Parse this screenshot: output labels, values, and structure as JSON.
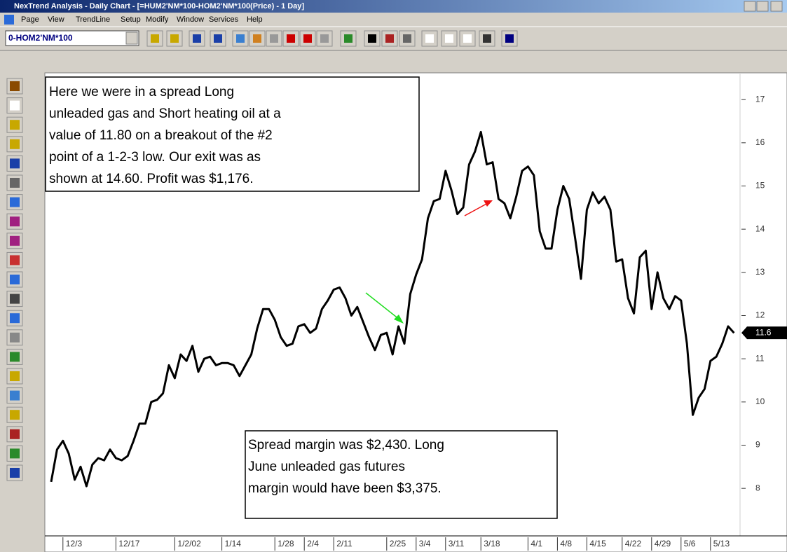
{
  "window": {
    "title": "NexTrend Analysis - Daily Chart - [=HUM2'NM*100-HOM2'NM*100(Price) - 1 Day]",
    "menu": [
      "Page",
      "View",
      "TrendLine",
      "Setup",
      "Modify",
      "Window",
      "Services",
      "Help"
    ],
    "symbol": "0-HOM2'NM*100"
  },
  "chart_data": {
    "type": "line",
    "color": "#000000",
    "x": [
      0,
      1,
      2,
      3,
      4,
      5,
      6,
      7,
      8,
      9,
      10,
      11,
      12,
      13,
      14,
      15,
      16,
      17,
      18,
      19,
      20,
      21,
      22,
      23,
      24,
      25,
      26,
      27,
      28,
      29,
      30,
      31,
      32,
      33,
      34,
      35,
      36,
      37,
      38,
      39,
      40,
      41,
      42,
      43,
      44,
      45,
      46,
      47,
      48,
      49,
      50,
      51,
      52,
      53,
      54,
      55,
      56,
      57,
      58,
      59,
      60,
      61,
      62,
      63,
      64,
      65,
      66,
      67,
      68,
      69,
      70,
      71,
      72,
      73,
      74,
      75,
      76,
      77,
      78,
      79,
      80,
      81,
      82,
      83,
      84,
      85,
      86,
      87,
      88,
      89,
      90,
      91,
      92,
      93,
      94,
      95,
      96,
      97,
      98,
      99,
      100,
      101,
      102,
      103,
      104,
      105,
      106,
      107,
      108,
      109,
      110,
      111,
      112,
      113,
      114,
      115,
      116
    ],
    "values": [
      8.15,
      8.9,
      9.1,
      8.8,
      8.2,
      8.5,
      8.05,
      8.55,
      8.7,
      8.65,
      8.9,
      8.7,
      8.65,
      8.75,
      9.1,
      9.5,
      9.5,
      10.0,
      10.05,
      10.2,
      10.85,
      10.55,
      11.1,
      10.95,
      11.3,
      10.7,
      11.0,
      11.05,
      10.85,
      10.9,
      10.9,
      10.85,
      10.6,
      10.85,
      11.1,
      11.7,
      12.15,
      12.15,
      11.9,
      11.5,
      11.3,
      11.35,
      11.75,
      11.8,
      11.6,
      11.7,
      12.15,
      12.35,
      12.6,
      12.65,
      12.4,
      12.0,
      12.2,
      11.85,
      11.5,
      11.2,
      11.55,
      11.6,
      11.1,
      11.75,
      11.35,
      12.5,
      12.95,
      13.3,
      14.25,
      14.65,
      14.7,
      15.35,
      14.9,
      14.35,
      14.5,
      15.5,
      15.8,
      16.25,
      15.5,
      15.55,
      14.7,
      14.6,
      14.25,
      14.75,
      15.35,
      15.45,
      15.25,
      13.95,
      13.55,
      13.55,
      14.45,
      15.0,
      14.7,
      13.8,
      12.85,
      14.45,
      14.85,
      14.6,
      14.75,
      14.45,
      13.25,
      13.3,
      12.4,
      12.05,
      13.35,
      13.5,
      12.15,
      13.0,
      12.4,
      12.15,
      12.45,
      12.35,
      11.35,
      9.7,
      10.1,
      10.3,
      10.95,
      11.05,
      11.35,
      11.75,
      11.6
    ],
    "xlim": [
      0,
      117
    ],
    "xticks": [
      {
        "value": 2,
        "label": "12/3"
      },
      {
        "value": 11,
        "label": "12/17"
      },
      {
        "value": 21,
        "label": "1/2/02"
      },
      {
        "value": 29,
        "label": "1/14"
      },
      {
        "value": 38,
        "label": "1/28"
      },
      {
        "value": 43,
        "label": "2/4"
      },
      {
        "value": 48,
        "label": "2/11"
      },
      {
        "value": 57,
        "label": "2/25"
      },
      {
        "value": 62,
        "label": "3/4"
      },
      {
        "value": 67,
        "label": "3/11"
      },
      {
        "value": 73,
        "label": "3/18"
      },
      {
        "value": 81,
        "label": "4/1"
      },
      {
        "value": 86,
        "label": "4/8"
      },
      {
        "value": 91,
        "label": "4/15"
      },
      {
        "value": 97,
        "label": "4/22"
      },
      {
        "value": 102,
        "label": "4/29"
      },
      {
        "value": 107,
        "label": "5/6"
      },
      {
        "value": 112,
        "label": "5/13"
      }
    ],
    "ylim": [
      6.9,
      17.6
    ],
    "yticks": [
      8,
      9,
      10,
      11,
      12,
      13,
      14,
      15,
      16,
      17
    ],
    "last_price": 11.6,
    "annotations": [
      [
        "Here we were in a spread Long",
        "unleaded gas and Short heating oil at a",
        "value of 11.80 on a breakout of the #2",
        "point of a 1-2-3 low. Our exit was as",
        "shown at 14.60. Profit was $1,176."
      ],
      [
        "Spread margin was $2,430. Long",
        "June unleaded gas futures",
        "margin would have been $3,375."
      ]
    ]
  }
}
